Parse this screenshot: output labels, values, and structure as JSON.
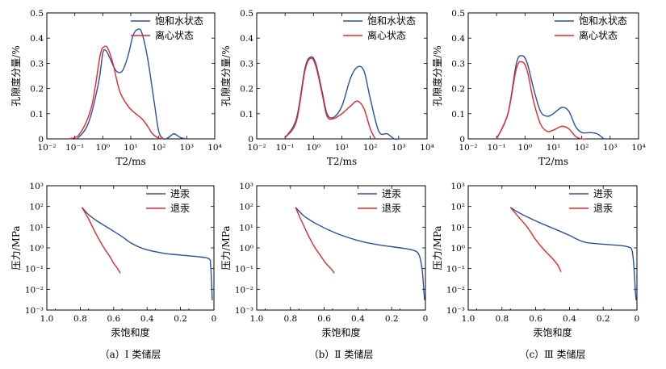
{
  "colors": {
    "saturated": "#2b4fa8",
    "centrifuged": "#e8262b",
    "axis": "#000000"
  },
  "chart_data": [
    {
      "type": "line",
      "panel": "a-top",
      "xlabel": "T2/ms",
      "ylabel": "孔隙度分量/%",
      "xscale": "log",
      "xlim": [
        0.01,
        10000
      ],
      "ylim": [
        0,
        0.5
      ],
      "xtick_labels": [
        "10⁻²",
        "10⁻¹",
        "10⁰",
        "10¹",
        "10²",
        "10³",
        "10⁴"
      ],
      "ytick_labels": [
        "0",
        "0.1",
        "0.2",
        "0.3",
        "0.4",
        "0.5"
      ],
      "legend": [
        "饱和水状态",
        "离心状态"
      ],
      "series": [
        {
          "name": "饱和水状态",
          "x": [
            0.12,
            0.3,
            0.7,
            1.0,
            1.3,
            1.8,
            3.0,
            5.0,
            8.0,
            12.0,
            18.0,
            25.0,
            40.0,
            70.0,
            100.0,
            150.0,
            220.0,
            350.0,
            600.0,
            1000.0
          ],
          "y": [
            0.0,
            0.06,
            0.22,
            0.34,
            0.35,
            0.32,
            0.27,
            0.27,
            0.33,
            0.41,
            0.435,
            0.42,
            0.32,
            0.14,
            0.03,
            0.0,
            0.005,
            0.02,
            0.005,
            0.0
          ]
        },
        {
          "name": "离心状态",
          "x": [
            0.06,
            0.15,
            0.4,
            0.8,
            1.1,
            1.5,
            2.3,
            4.0,
            8.0,
            15.0,
            25.0,
            40.0,
            60.0,
            100.0,
            150.0
          ],
          "y": [
            0.0,
            0.02,
            0.13,
            0.33,
            0.365,
            0.36,
            0.3,
            0.19,
            0.13,
            0.1,
            0.08,
            0.05,
            0.02,
            0.003,
            0.0
          ]
        }
      ]
    },
    {
      "type": "line",
      "panel": "b-top",
      "xlabel": "T2/ms",
      "ylabel": "孔隙度分量/%",
      "xscale": "log",
      "xlim": [
        0.01,
        10000
      ],
      "ylim": [
        0,
        0.5
      ],
      "xtick_labels": [
        "10⁻²",
        "10⁻¹",
        "10⁰",
        "10¹",
        "10²",
        "10³",
        "10⁴"
      ],
      "ytick_labels": [
        "0",
        "0.1",
        "0.2",
        "0.3",
        "0.4",
        "0.5"
      ],
      "legend": [
        "饱和水状态",
        "离心状态"
      ],
      "series": [
        {
          "name": "饱和水状态",
          "x": [
            0.1,
            0.25,
            0.5,
            0.8,
            1.2,
            2.0,
            3.0,
            5.0,
            10.0,
            20.0,
            35.0,
            60.0,
            100.0,
            200.0,
            400.0,
            700.0,
            1000.0
          ],
          "y": [
            0.005,
            0.08,
            0.28,
            0.325,
            0.3,
            0.19,
            0.1,
            0.085,
            0.13,
            0.24,
            0.285,
            0.27,
            0.16,
            0.03,
            0.02,
            0.0,
            0.0
          ]
        },
        {
          "name": "离心状态",
          "x": [
            0.1,
            0.25,
            0.5,
            0.8,
            1.2,
            2.0,
            3.0,
            5.0,
            10.0,
            20.0,
            35.0,
            60.0,
            100.0,
            150.0
          ],
          "y": [
            0.005,
            0.07,
            0.27,
            0.32,
            0.29,
            0.18,
            0.09,
            0.08,
            0.1,
            0.13,
            0.15,
            0.12,
            0.04,
            0.0
          ]
        }
      ]
    },
    {
      "type": "line",
      "panel": "c-top",
      "xlabel": "T2/ms",
      "ylabel": "孔隙度分量/%",
      "xscale": "log",
      "xlim": [
        0.01,
        10000
      ],
      "ylim": [
        0,
        0.5
      ],
      "xtick_labels": [
        "10⁻²",
        "10⁻¹",
        "10⁰",
        "10¹",
        "10²",
        "10³",
        "10⁴"
      ],
      "ytick_labels": [
        "0",
        "0.1",
        "0.2",
        "0.3",
        "0.4",
        "0.5"
      ],
      "legend": [
        "饱和水状态",
        "离心状态"
      ],
      "series": [
        {
          "name": "饱和水状态",
          "x": [
            0.1,
            0.25,
            0.5,
            0.8,
            1.2,
            2.0,
            3.5,
            6.0,
            10.0,
            20.0,
            35.0,
            60.0,
            100.0,
            200.0,
            350.0,
            600.0
          ],
          "y": [
            0.0,
            0.1,
            0.3,
            0.33,
            0.3,
            0.2,
            0.11,
            0.09,
            0.1,
            0.125,
            0.11,
            0.05,
            0.025,
            0.025,
            0.02,
            0.0
          ]
        },
        {
          "name": "离心状态",
          "x": [
            0.1,
            0.25,
            0.5,
            0.8,
            1.2,
            2.0,
            3.5,
            6.0,
            10.0,
            20.0,
            35.0,
            60.0,
            100.0,
            150.0
          ],
          "y": [
            0.0,
            0.1,
            0.28,
            0.305,
            0.27,
            0.15,
            0.06,
            0.03,
            0.035,
            0.05,
            0.04,
            0.01,
            0.0,
            0.0
          ]
        }
      ]
    },
    {
      "type": "line",
      "panel": "a-bottom",
      "xlabel": "汞饱和度",
      "ylabel": "压力/MPa",
      "xscale": "linear",
      "xlim": [
        1.0,
        0.0
      ],
      "yscale": "log",
      "ylim": [
        0.001,
        1000
      ],
      "xtick_labels": [
        "1.0",
        "0.8",
        "0.6",
        "0.4",
        "0.2",
        "0"
      ],
      "ytick_labels": [
        "10⁻³",
        "10⁻²",
        "10⁻¹",
        "10⁰",
        "10¹",
        "10²",
        "10³"
      ],
      "legend": [
        "进汞",
        "退汞"
      ],
      "caption": "（a）Ⅰ 类储层",
      "series": [
        {
          "name": "进汞",
          "x": [
            0.79,
            0.75,
            0.7,
            0.62,
            0.55,
            0.5,
            0.42,
            0.3,
            0.2,
            0.1,
            0.03,
            0.02,
            0.015,
            0.01
          ],
          "y": [
            90,
            40,
            20,
            8,
            3.5,
            1.8,
            0.9,
            0.55,
            0.45,
            0.38,
            0.3,
            0.15,
            0.03,
            0.003
          ]
        },
        {
          "name": "退汞",
          "x": [
            0.79,
            0.75,
            0.72,
            0.68,
            0.65,
            0.62,
            0.6,
            0.58,
            0.56
          ],
          "y": [
            90,
            25,
            8,
            2.0,
            0.8,
            0.35,
            0.18,
            0.11,
            0.06
          ]
        }
      ]
    },
    {
      "type": "line",
      "panel": "b-bottom",
      "xlabel": "汞饱和度",
      "ylabel": "压力/MPa",
      "xscale": "linear",
      "xlim": [
        1.0,
        0.0
      ],
      "yscale": "log",
      "ylim": [
        0.001,
        1000
      ],
      "xtick_labels": [
        "1.0",
        "0.8",
        "0.6",
        "0.4",
        "0.2",
        "0"
      ],
      "ytick_labels": [
        "10⁻³",
        "10⁻²",
        "10⁻¹",
        "10⁰",
        "10¹",
        "10²",
        "10³"
      ],
      "legend": [
        "进汞",
        "退汞"
      ],
      "caption": "（b）Ⅱ 类储层",
      "series": [
        {
          "name": "进汞",
          "x": [
            0.77,
            0.72,
            0.65,
            0.55,
            0.45,
            0.35,
            0.25,
            0.15,
            0.08,
            0.04,
            0.02,
            0.01,
            0.005
          ],
          "y": [
            90,
            35,
            15,
            6,
            3,
            1.8,
            1.3,
            1.0,
            0.8,
            0.5,
            0.1,
            0.01,
            0.003
          ]
        },
        {
          "name": "退汞",
          "x": [
            0.77,
            0.74,
            0.7,
            0.66,
            0.62,
            0.59,
            0.56,
            0.54
          ],
          "y": [
            90,
            25,
            5,
            1.2,
            0.4,
            0.18,
            0.1,
            0.06
          ]
        }
      ]
    },
    {
      "type": "line",
      "panel": "c-bottom",
      "xlabel": "汞饱和度",
      "ylabel": "压力/MPa",
      "xscale": "linear",
      "xlim": [
        1.0,
        0.0
      ],
      "yscale": "log",
      "ylim": [
        0.001,
        1000
      ],
      "xtick_labels": [
        "1.0",
        "0.8",
        "0.6",
        "0.4",
        "0.2",
        "0"
      ],
      "ytick_labels": [
        "10⁻³",
        "10⁻²",
        "10⁻¹",
        "10⁰",
        "10¹",
        "10²",
        "10³"
      ],
      "legend": [
        "进汞",
        "退汞"
      ],
      "caption": "（c）Ⅲ 类储层",
      "series": [
        {
          "name": "进汞",
          "x": [
            0.75,
            0.7,
            0.6,
            0.5,
            0.4,
            0.35,
            0.3,
            0.2,
            0.1,
            0.05,
            0.03,
            0.02,
            0.01,
            0.005
          ],
          "y": [
            90,
            50,
            20,
            9,
            4,
            2.5,
            1.8,
            1.5,
            1.3,
            1.1,
            0.8,
            0.2,
            0.01,
            0.003
          ]
        },
        {
          "name": "退汞",
          "x": [
            0.75,
            0.7,
            0.65,
            0.6,
            0.55,
            0.5,
            0.47,
            0.45
          ],
          "y": [
            90,
            30,
            10,
            2.5,
            0.8,
            0.3,
            0.15,
            0.07
          ]
        }
      ]
    }
  ]
}
